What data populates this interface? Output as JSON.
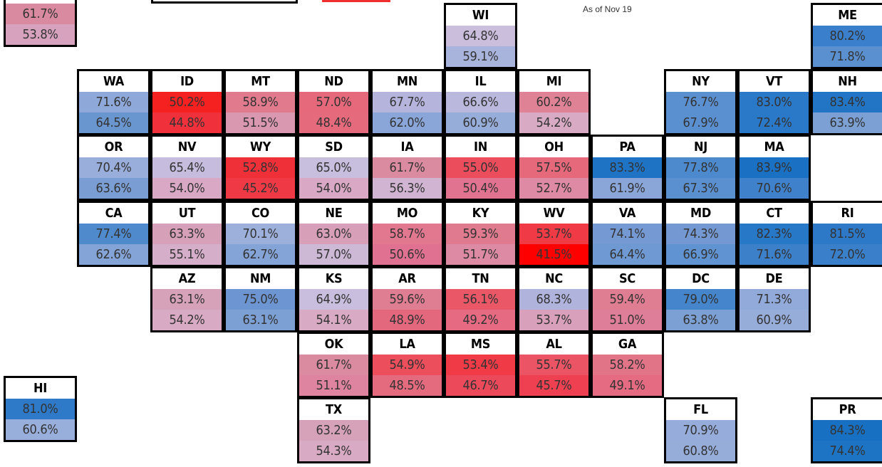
{
  "note": "As of Nov 19",
  "tiles": [
    {
      "name": null,
      "values": [
        61.7,
        53.8
      ],
      "value_labels": [
        "61.7%",
        "53.8%"
      ],
      "colors": [
        "#d98aa0",
        "#d6a2bd"
      ]
    },
    {
      "name": "WI",
      "values": [
        64.8,
        59.1
      ],
      "value_labels": [
        "64.8%",
        "59.1%"
      ],
      "colors": [
        "#cbbedd",
        "#a9b4dd"
      ]
    },
    {
      "name": "ME",
      "values": [
        80.2,
        71.8
      ],
      "value_labels": [
        "80.2%",
        "71.8%"
      ],
      "colors": [
        "#3a7fcb",
        "#5a90d0"
      ]
    },
    {
      "name": "WA",
      "values": [
        71.6,
        64.5
      ],
      "value_labels": [
        "71.6%",
        "64.5%"
      ],
      "colors": [
        "#8ea9d9",
        "#6a96d0"
      ]
    },
    {
      "name": "ID",
      "values": [
        50.2,
        44.8
      ],
      "value_labels": [
        "50.2%",
        "44.8%"
      ],
      "colors": [
        "#f52020",
        "#f0303a"
      ]
    },
    {
      "name": "MT",
      "values": [
        58.9,
        51.5
      ],
      "value_labels": [
        "58.9%",
        "51.5%"
      ],
      "colors": [
        "#e07a8c",
        "#d998b0"
      ]
    },
    {
      "name": "ND",
      "values": [
        57.0,
        48.4
      ],
      "value_labels": [
        "57.0%",
        "48.4%"
      ],
      "colors": [
        "#e5697a",
        "#e56a7c"
      ]
    },
    {
      "name": "MN",
      "values": [
        67.7,
        62.0
      ],
      "value_labels": [
        "67.7%",
        "62.0%"
      ],
      "colors": [
        "#b4b4dc",
        "#8aa6d8"
      ]
    },
    {
      "name": "IL",
      "values": [
        66.6,
        60.9
      ],
      "value_labels": [
        "66.6%",
        "60.9%"
      ],
      "colors": [
        "#bab8dc",
        "#96acd9"
      ]
    },
    {
      "name": "MI",
      "values": [
        60.2,
        54.2
      ],
      "value_labels": [
        "60.2%",
        "54.2%"
      ],
      "colors": [
        "#df8296",
        "#d8aac4"
      ]
    },
    {
      "name": "NY",
      "values": [
        76.7,
        67.9
      ],
      "value_labels": [
        "76.7%",
        "67.9%"
      ],
      "colors": [
        "#5a8fd0",
        "#5a8fd0"
      ]
    },
    {
      "name": "VT",
      "values": [
        83.0,
        72.4
      ],
      "value_labels": [
        "83.0%",
        "72.4%"
      ],
      "colors": [
        "#2a78c8",
        "#2a78c8"
      ]
    },
    {
      "name": "NH",
      "values": [
        83.4,
        63.9
      ],
      "value_labels": [
        "83.4%",
        "63.9%"
      ],
      "colors": [
        "#2274c4",
        "#7c9fd4"
      ]
    },
    {
      "name": "OR",
      "values": [
        70.4,
        63.6
      ],
      "value_labels": [
        "70.4%",
        "63.6%"
      ],
      "colors": [
        "#9aaedb",
        "#7a9ed4"
      ]
    },
    {
      "name": "NV",
      "values": [
        65.4,
        54.0
      ],
      "value_labels": [
        "65.4%",
        "54.0%"
      ],
      "colors": [
        "#c6bcdd",
        "#d8a8c4"
      ]
    },
    {
      "name": "WY",
      "values": [
        52.8,
        45.2
      ],
      "value_labels": [
        "52.8%",
        "45.2%"
      ],
      "colors": [
        "#f03038",
        "#ef3a46"
      ]
    },
    {
      "name": "SD",
      "values": [
        65.0,
        54.0
      ],
      "value_labels": [
        "65.0%",
        "54.0%"
      ],
      "colors": [
        "#c8bedd",
        "#d8a8c4"
      ]
    },
    {
      "name": "IA",
      "values": [
        61.7,
        56.3
      ],
      "value_labels": [
        "61.7%",
        "56.3%"
      ],
      "colors": [
        "#db8ba0",
        "#d0b4d2"
      ]
    },
    {
      "name": "IN",
      "values": [
        55.0,
        50.4
      ],
      "value_labels": [
        "55.0%",
        "50.4%"
      ],
      "colors": [
        "#ec4d5c",
        "#e27390"
      ]
    },
    {
      "name": "OH",
      "values": [
        57.5,
        52.7
      ],
      "value_labels": [
        "57.5%",
        "52.7%"
      ],
      "colors": [
        "#e5697a",
        "#df8aa4"
      ]
    },
    {
      "name": "PA",
      "values": [
        83.3,
        61.9
      ],
      "value_labels": [
        "83.3%",
        "61.9%"
      ],
      "colors": [
        "#1f73c4",
        "#8aa6d8"
      ]
    },
    {
      "name": "NJ",
      "values": [
        77.8,
        67.3
      ],
      "value_labels": [
        "77.8%",
        "67.3%"
      ],
      "colors": [
        "#4d89cd",
        "#5a90d0"
      ]
    },
    {
      "name": "MA",
      "values": [
        83.9,
        70.6
      ],
      "value_labels": [
        "83.9%",
        "70.6%"
      ],
      "colors": [
        "#1a70c2",
        "#3f82cb"
      ]
    },
    {
      "name": "CA",
      "values": [
        77.4,
        62.6
      ],
      "value_labels": [
        "77.4%",
        "62.6%"
      ],
      "colors": [
        "#4f8acd",
        "#84a3d6"
      ]
    },
    {
      "name": "UT",
      "values": [
        63.3,
        55.1
      ],
      "value_labels": [
        "63.3%",
        "55.1%"
      ],
      "colors": [
        "#d6a0b8",
        "#d5aec9"
      ]
    },
    {
      "name": "CO",
      "values": [
        70.1,
        62.7
      ],
      "value_labels": [
        "70.1%",
        "62.7%"
      ],
      "colors": [
        "#9cb0db",
        "#84a3d6"
      ]
    },
    {
      "name": "NE",
      "values": [
        63.0,
        57.0
      ],
      "value_labels": [
        "63.0%",
        "57.0%"
      ],
      "colors": [
        "#d8a0b8",
        "#cdb8d6"
      ]
    },
    {
      "name": "MO",
      "values": [
        58.7,
        50.6
      ],
      "value_labels": [
        "58.7%",
        "50.6%"
      ],
      "colors": [
        "#e17890",
        "#e07190"
      ]
    },
    {
      "name": "KY",
      "values": [
        59.3,
        51.7
      ],
      "value_labels": [
        "59.3%",
        "51.7%"
      ],
      "colors": [
        "#e07b8f",
        "#dd8aa4"
      ]
    },
    {
      "name": "WV",
      "values": [
        53.7,
        41.5
      ],
      "value_labels": [
        "53.7%",
        "41.5%"
      ],
      "colors": [
        "#f03a45",
        "#ff0000"
      ]
    },
    {
      "name": "VA",
      "values": [
        74.1,
        64.4
      ],
      "value_labels": [
        "74.1%",
        "64.4%"
      ],
      "colors": [
        "#7599d2",
        "#6e99d2"
      ]
    },
    {
      "name": "MD",
      "values": [
        74.3,
        66.9
      ],
      "value_labels": [
        "74.3%",
        "66.9%"
      ],
      "colors": [
        "#7498d2",
        "#5f93d1"
      ]
    },
    {
      "name": "CT",
      "values": [
        82.3,
        71.6
      ],
      "value_labels": [
        "82.3%",
        "71.6%"
      ],
      "colors": [
        "#2878c8",
        "#3c80ca"
      ]
    },
    {
      "name": "RI",
      "values": [
        81.5,
        72.0
      ],
      "value_labels": [
        "81.5%",
        "72.0%"
      ],
      "colors": [
        "#2d79c8",
        "#3a7fca"
      ]
    },
    {
      "name": "AZ",
      "values": [
        63.1,
        54.2
      ],
      "value_labels": [
        "63.1%",
        "54.2%"
      ],
      "colors": [
        "#d6a2ba",
        "#d8aac4"
      ]
    },
    {
      "name": "NM",
      "values": [
        75.0,
        63.1
      ],
      "value_labels": [
        "75.0%",
        "63.1%"
      ],
      "colors": [
        "#6c95d1",
        "#7c9fd4"
      ]
    },
    {
      "name": "KS",
      "values": [
        64.9,
        54.1
      ],
      "value_labels": [
        "64.9%",
        "54.1%"
      ],
      "colors": [
        "#c9bedd",
        "#d8aac4"
      ]
    },
    {
      "name": "AR",
      "values": [
        59.6,
        48.9
      ],
      "value_labels": [
        "59.6%",
        "48.9%"
      ],
      "colors": [
        "#df7e92",
        "#e3687e"
      ]
    },
    {
      "name": "TN",
      "values": [
        56.1,
        49.2
      ],
      "value_labels": [
        "56.1%",
        "49.2%"
      ],
      "colors": [
        "#ea5868",
        "#e56a82"
      ]
    },
    {
      "name": "NC",
      "values": [
        68.3,
        53.7
      ],
      "value_labels": [
        "68.3%",
        "53.7%"
      ],
      "colors": [
        "#b0b3dc",
        "#d9a0bc"
      ]
    },
    {
      "name": "SC",
      "values": [
        59.4,
        51.0
      ],
      "value_labels": [
        "59.4%",
        "51.0%"
      ],
      "colors": [
        "#df7e92",
        "#df7e98"
      ]
    },
    {
      "name": "DC",
      "values": [
        79.0,
        63.8
      ],
      "value_labels": [
        "79.0%",
        "63.8%"
      ],
      "colors": [
        "#4485cc",
        "#7c9fd4"
      ]
    },
    {
      "name": "DE",
      "values": [
        71.3,
        60.9
      ],
      "value_labels": [
        "71.3%",
        "60.9%"
      ],
      "colors": [
        "#92aada",
        "#96acd9"
      ]
    },
    {
      "name": "OK",
      "values": [
        61.7,
        51.1
      ],
      "value_labels": [
        "61.7%",
        "51.1%"
      ],
      "colors": [
        "#db8ba0",
        "#de84a0"
      ]
    },
    {
      "name": "LA",
      "values": [
        54.9,
        48.5
      ],
      "value_labels": [
        "54.9%",
        "48.5%"
      ],
      "colors": [
        "#ec4e5c",
        "#e46a7e"
      ]
    },
    {
      "name": "MS",
      "values": [
        53.4,
        46.7
      ],
      "value_labels": [
        "53.4%",
        "46.7%"
      ],
      "colors": [
        "#f03a46",
        "#ec4a5a"
      ]
    },
    {
      "name": "AL",
      "values": [
        55.7,
        45.7
      ],
      "value_labels": [
        "55.7%",
        "45.7%"
      ],
      "colors": [
        "#eb5464",
        "#ee4050"
      ]
    },
    {
      "name": "GA",
      "values": [
        58.2,
        49.1
      ],
      "value_labels": [
        "58.2%",
        "49.1%"
      ],
      "colors": [
        "#e27487",
        "#e56b82"
      ]
    },
    {
      "name": "TX",
      "values": [
        63.2,
        54.3
      ],
      "value_labels": [
        "63.2%",
        "54.3%"
      ],
      "colors": [
        "#d6a2ba",
        "#d8aac4"
      ]
    },
    {
      "name": "FL",
      "values": [
        70.9,
        60.8
      ],
      "value_labels": [
        "70.9%",
        "60.8%"
      ],
      "colors": [
        "#96acda",
        "#96acd9"
      ]
    },
    {
      "name": "PR",
      "values": [
        84.3,
        74.4
      ],
      "value_labels": [
        "84.3%",
        "74.4%"
      ],
      "colors": [
        "#1870c2",
        "#1e74c4"
      ]
    },
    {
      "name": "HI",
      "values": [
        81.0,
        60.6
      ],
      "value_labels": [
        "81.0%",
        "60.6%"
      ],
      "colors": [
        "#2e79c8",
        "#98aedb"
      ]
    }
  ]
}
